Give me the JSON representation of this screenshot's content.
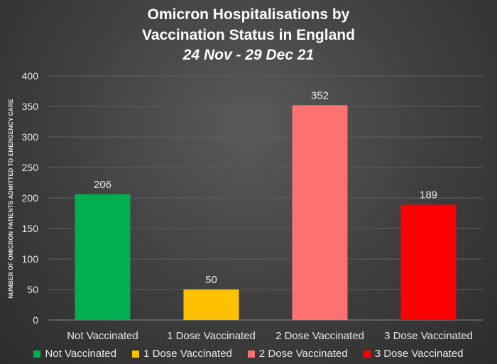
{
  "chart_data": {
    "type": "bar",
    "title": "Omicron Hospitalisations by",
    "title_line2": "Vaccination Status in England",
    "subtitle": "24 Nov - 29 Dec 21",
    "ylabel": "NUMBER OF OMICRON PATIENTS ADMITTED TO EMERGENCY CARE",
    "xlabel": "",
    "categories": [
      "Not Vaccinated",
      "1 Dose Vaccinated",
      "2 Dose Vaccinated",
      "3 Dose Vaccinated"
    ],
    "values": [
      206,
      50,
      352,
      189
    ],
    "colors": [
      "#00b050",
      "#ffc000",
      "#ff7070",
      "#ff0000"
    ],
    "ylim": [
      0,
      400
    ],
    "yticks": [
      0,
      50,
      100,
      150,
      200,
      250,
      300,
      350,
      400
    ],
    "grid": true,
    "legend_position": "bottom",
    "legend": [
      "Not Vaccinated",
      "1 Dose Vaccinated",
      "2 Dose Vaccinated",
      "3 Dose Vaccinated"
    ]
  }
}
